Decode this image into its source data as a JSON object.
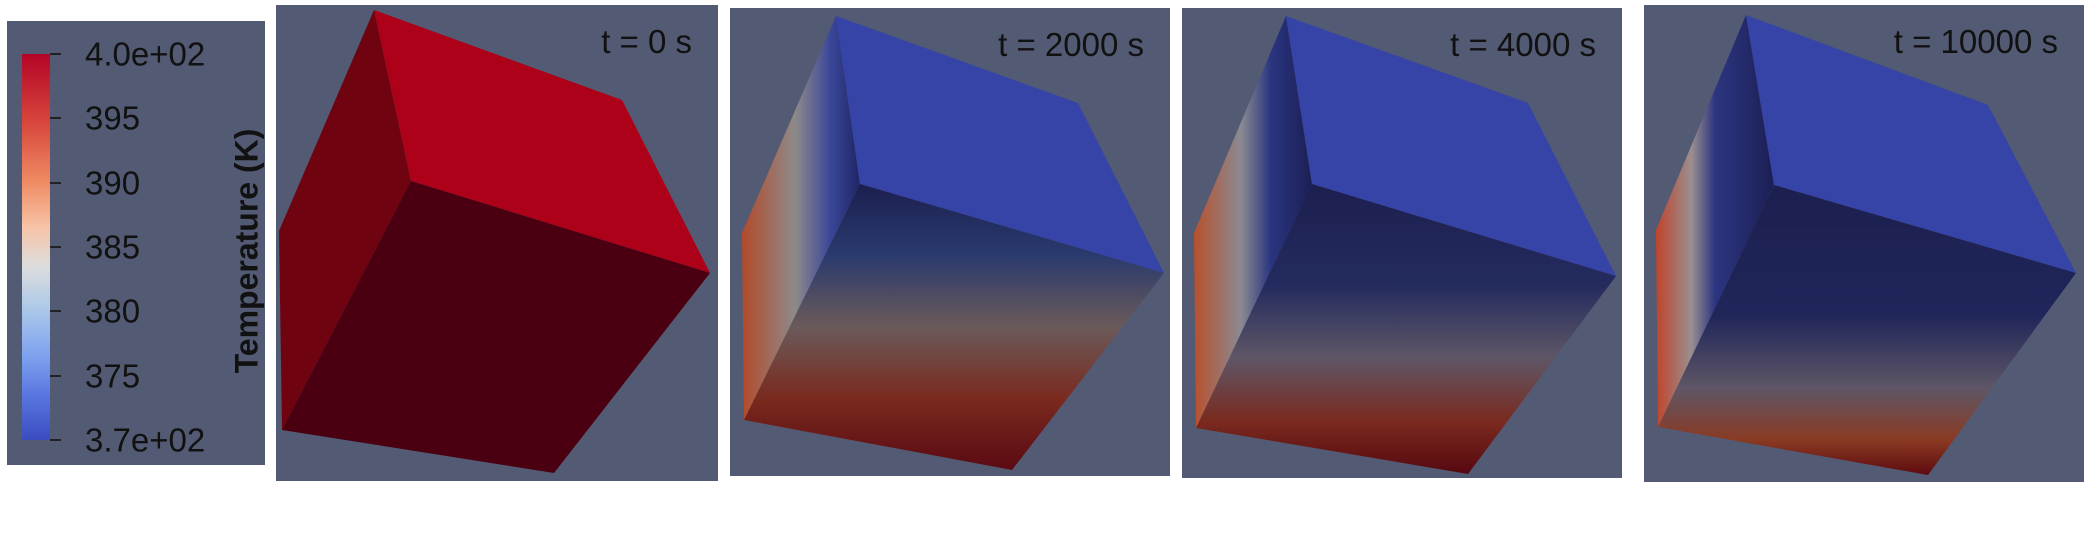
{
  "legend": {
    "title": "Temperature (K)",
    "unit": "K",
    "range": [
      370,
      400
    ],
    "ticks": [
      {
        "value": 400,
        "label": "4.0e+02"
      },
      {
        "value": 395,
        "label": "395"
      },
      {
        "value": 390,
        "label": "390"
      },
      {
        "value": 385,
        "label": "385"
      },
      {
        "value": 380,
        "label": "380"
      },
      {
        "value": 375,
        "label": "375"
      },
      {
        "value": 370,
        "label": "3.7e+02"
      }
    ],
    "colormap": {
      "high": "#b40426",
      "mid": "#dddddd",
      "low": "#3b4cc0"
    }
  },
  "panels": [
    {
      "label": "t = 0 s"
    },
    {
      "label": "t = 2000 s"
    },
    {
      "label": "t = 4000 s"
    },
    {
      "label": "t = 10000 s"
    }
  ],
  "colors": {
    "background": "#535a73",
    "hot_top": "#ad0119",
    "hot_left": "#6f0310",
    "hot_front": "#4a0010",
    "cold_top": "#3544a6",
    "cold_dark": "#1c1f4f",
    "warm_bottom": "#7a1a1a"
  }
}
